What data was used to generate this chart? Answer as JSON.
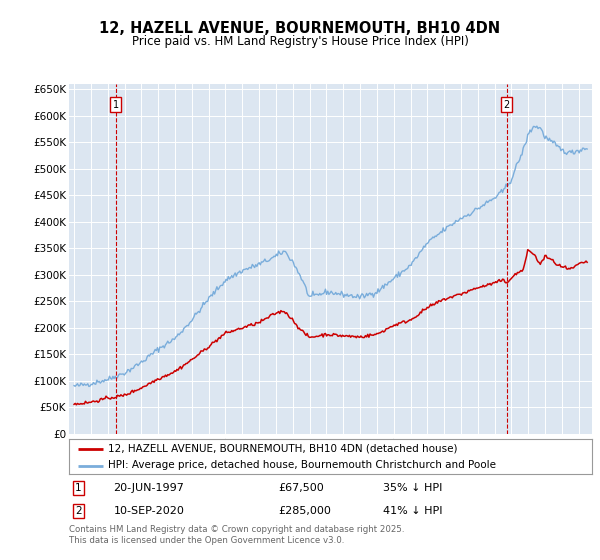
{
  "title": "12, HAZELL AVENUE, BOURNEMOUTH, BH10 4DN",
  "subtitle": "Price paid vs. HM Land Registry's House Price Index (HPI)",
  "fig_bg_color": "#ffffff",
  "plot_bg_color": "#dce6f1",
  "ylim": [
    0,
    660000
  ],
  "yticks": [
    0,
    50000,
    100000,
    150000,
    200000,
    250000,
    300000,
    350000,
    400000,
    450000,
    500000,
    550000,
    600000,
    650000
  ],
  "ytick_labels": [
    "£0",
    "£50K",
    "£100K",
    "£150K",
    "£200K",
    "£250K",
    "£300K",
    "£350K",
    "£400K",
    "£450K",
    "£500K",
    "£550K",
    "£600K",
    "£650K"
  ],
  "xlim_start": 1994.7,
  "xlim_end": 2025.8,
  "red_color": "#cc0000",
  "blue_color": "#7aaddb",
  "marker1_x": 1997.47,
  "marker2_x": 2020.71,
  "legend_line1": "12, HAZELL AVENUE, BOURNEMOUTH, BH10 4DN (detached house)",
  "legend_line2": "HPI: Average price, detached house, Bournemouth Christchurch and Poole",
  "note1_date": "20-JUN-1997",
  "note1_price": "£67,500",
  "note1_hpi": "35% ↓ HPI",
  "note2_date": "10-SEP-2020",
  "note2_price": "£285,000",
  "note2_hpi": "41% ↓ HPI",
  "footer": "Contains HM Land Registry data © Crown copyright and database right 2025.\nThis data is licensed under the Open Government Licence v3.0."
}
